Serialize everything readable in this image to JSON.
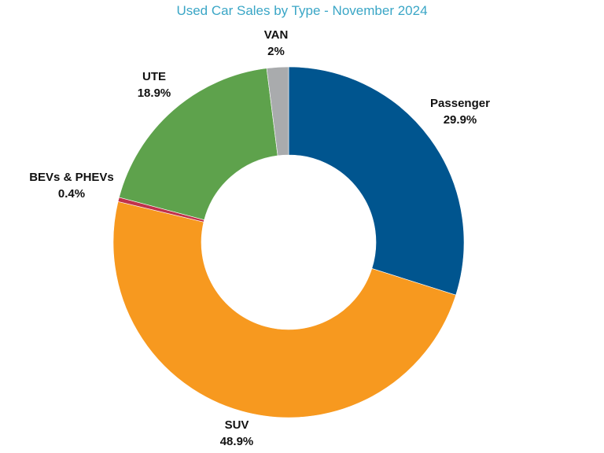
{
  "chart_data": {
    "type": "pie",
    "variant": "donut",
    "title": "Used Car Sales by Type - November 2024",
    "legend": "none",
    "slices": [
      {
        "name": "Passenger",
        "label": "29.9%",
        "value": 29.9,
        "color": "#00558f"
      },
      {
        "name": "SUV",
        "label": "48.9%",
        "value": 48.9,
        "color": "#f7991f"
      },
      {
        "name": "BEVs & PHEVs",
        "label": "0.4%",
        "value": 0.4,
        "color": "#c0324b"
      },
      {
        "name": "UTE",
        "label": "18.9%",
        "value": 18.9,
        "color": "#5ea24c"
      },
      {
        "name": "VAN",
        "label": "2%",
        "value": 2,
        "color": "#a9abad"
      }
    ]
  }
}
